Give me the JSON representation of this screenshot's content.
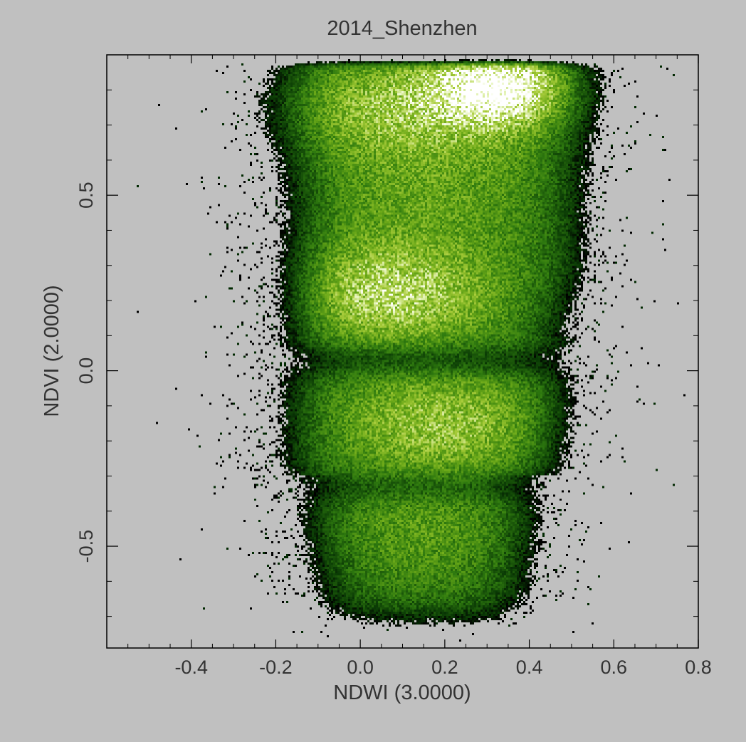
{
  "chart_data": {
    "type": "heatmap",
    "title": "2014_Shenzhen",
    "xlabel": "NDWI (3.0000)",
    "ylabel": "NDVI (2.0000)",
    "xlim": [
      -0.6,
      0.8
    ],
    "ylim": [
      -0.79,
      0.9
    ],
    "x_ticks": [
      -0.4,
      -0.2,
      0.0,
      0.2,
      0.4,
      0.6,
      0.8
    ],
    "x_tick_labels": [
      "-0.4",
      "-0.2",
      "0.0",
      "0.2",
      "0.4",
      "0.6",
      "0.8"
    ],
    "y_ticks": [
      -0.5,
      0.0,
      0.5
    ],
    "y_tick_labels": [
      "-0.5",
      "0.0",
      "0.5"
    ],
    "x_minor_step": 0.05,
    "y_minor_step": 0.1,
    "grid": false,
    "legend": "none",
    "colormap": [
      "#000000",
      "#0a3a05",
      "#2f7a0f",
      "#6aa818",
      "#a8cc3a",
      "#e8f5c0",
      "#ffffff"
    ],
    "density_core": [
      {
        "x": 0.33,
        "y": 0.8,
        "density": 1.0
      },
      {
        "x": 0.05,
        "y": 0.22,
        "density": 0.72
      },
      {
        "x": 0.2,
        "y": -0.15,
        "density": 0.62
      },
      {
        "x": 0.15,
        "y": -0.45,
        "density": 0.35
      },
      {
        "x": 0.15,
        "y": 0.5,
        "density": 0.45
      }
    ]
  }
}
